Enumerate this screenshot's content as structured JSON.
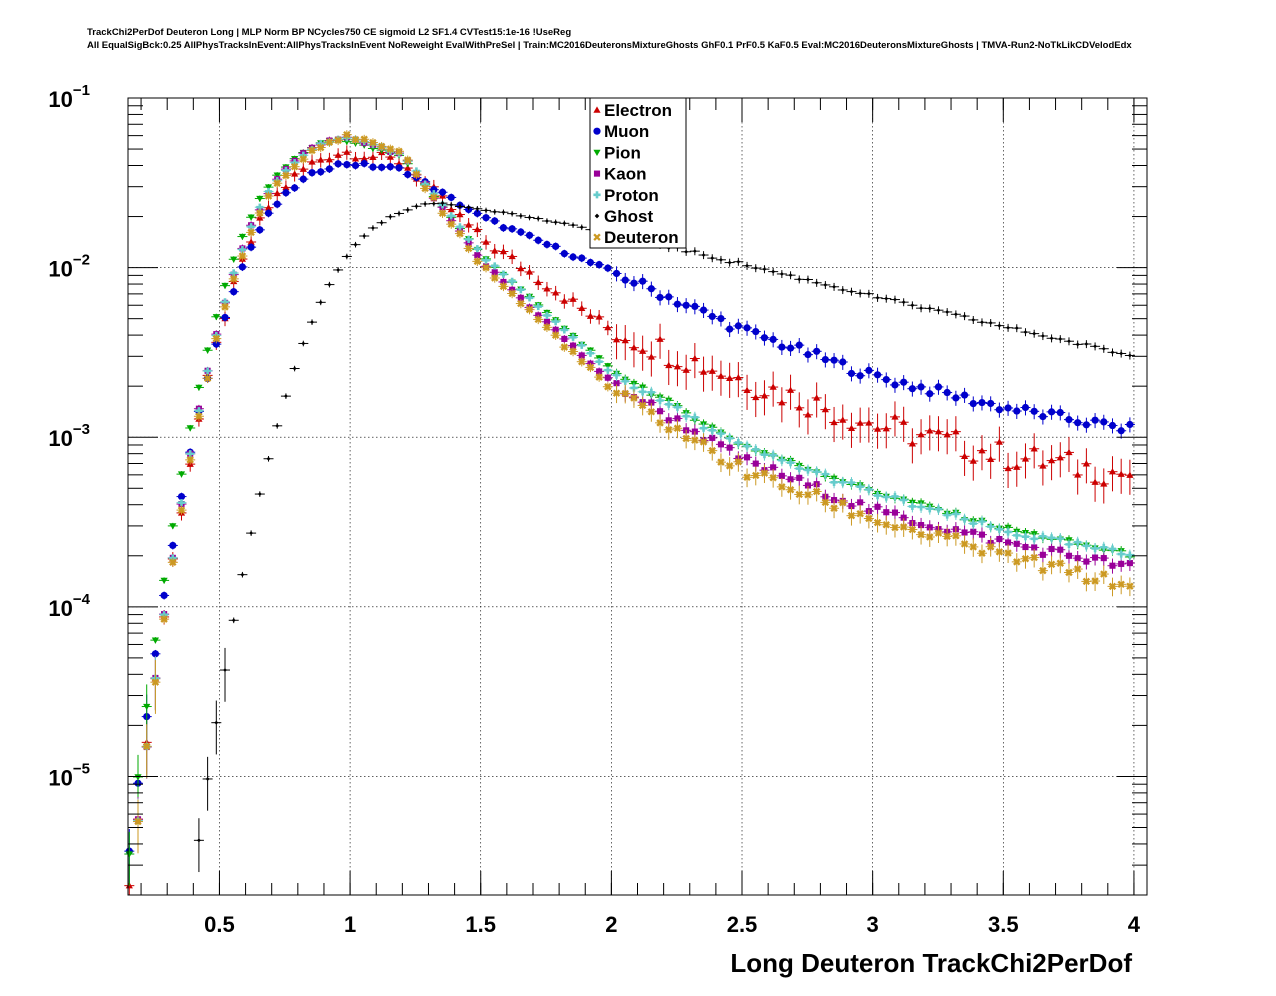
{
  "title_lines": [
    "TrackChi2PerDof Deuteron Long | MLP Norm BP NCycles750 CE sigmoid L2 SF1.4 CVTest15:1e-16 !UseReg",
    "All EqualSigBck:0.25 AllPhysTracksInEvent:AllPhysTracksInEvent NoReweight EvalWithPreSel | Train:MC2016DeuteronsMixtureGhosts GhF0.1 PrF0.5 KaF0.5 Eval:MC2016DeuteronsMixtureGhosts | TMVA-Run2-NoTkLikCDVelodEdx"
  ],
  "chart_data": {
    "type": "scatter",
    "xlabel": "Long Deuteron TrackChi2PerDof",
    "ylabel": "",
    "xlim": [
      0.15,
      4.05
    ],
    "ylim": [
      2e-06,
      0.1
    ],
    "ylog": true,
    "grid": true,
    "legend_position": "top-center",
    "x_ticks": [
      {
        "value": 0.5,
        "label": "0.5"
      },
      {
        "value": 1,
        "label": "1"
      },
      {
        "value": 1.5,
        "label": "1.5"
      },
      {
        "value": 2,
        "label": "2"
      },
      {
        "value": 2.5,
        "label": "2.5"
      },
      {
        "value": 3,
        "label": "3"
      },
      {
        "value": 3.5,
        "label": "3.5"
      },
      {
        "value": 4,
        "label": "4"
      }
    ],
    "y_ticks": [
      {
        "value": 1e-05,
        "mant": "10",
        "exp": "−5"
      },
      {
        "value": 0.0001,
        "mant": "10",
        "exp": "−4"
      },
      {
        "value": 0.001,
        "mant": "10",
        "exp": "−3"
      },
      {
        "value": 0.01,
        "mant": "10",
        "exp": "−2"
      },
      {
        "value": 0.1,
        "mant": "10",
        "exp": "−1"
      }
    ],
    "series": [
      {
        "name": "Electron",
        "color": "#cc0000",
        "marker": "triangle-up",
        "shape": {
          "peak_x": 1.0,
          "peak_y": 0.048,
          "rise": 7.5,
          "fall_x": [
            1.2,
            1.5,
            2.0,
            2.5,
            3.0,
            3.5,
            4.0
          ],
          "fall_y": [
            0.042,
            0.015,
            0.0043,
            0.0022,
            0.0012,
            0.00078,
            0.0006
          ]
        },
        "noise": 0.17
      },
      {
        "name": "Muon",
        "color": "#0000cc",
        "marker": "circle",
        "shape": {
          "peak_x": 1.0,
          "peak_y": 0.041,
          "rise": 7.0,
          "fall_x": [
            1.2,
            1.5,
            2.0,
            2.5,
            3.0,
            3.5,
            4.0
          ],
          "fall_y": [
            0.038,
            0.02,
            0.0095,
            0.0043,
            0.0023,
            0.0015,
            0.0011
          ]
        },
        "noise": 0.06
      },
      {
        "name": "Pion",
        "color": "#00aa00",
        "marker": "triangle-down",
        "shape": {
          "peak_x": 0.97,
          "peak_y": 0.057,
          "rise": 8.0,
          "fall_x": [
            1.2,
            1.5,
            2.0,
            2.5,
            3.0,
            3.5,
            4.0
          ],
          "fall_y": [
            0.045,
            0.012,
            0.0025,
            0.0009,
            0.00048,
            0.00029,
            0.0002
          ]
        },
        "noise": 0.03
      },
      {
        "name": "Kaon",
        "color": "#990099",
        "marker": "square",
        "shape": {
          "peak_x": 0.99,
          "peak_y": 0.058,
          "rise": 8.0,
          "fall_x": [
            1.2,
            1.5,
            2.0,
            2.5,
            3.0,
            3.5,
            4.0
          ],
          "fall_y": [
            0.046,
            0.011,
            0.0021,
            0.00074,
            0.00037,
            0.00024,
            0.00017
          ]
        },
        "noise": 0.06
      },
      {
        "name": "Proton",
        "color": "#66cccc",
        "marker": "plus",
        "shape": {
          "peak_x": 0.99,
          "peak_y": 0.058,
          "rise": 8.0,
          "fall_x": [
            1.2,
            1.5,
            2.0,
            2.5,
            3.0,
            3.5,
            4.0
          ],
          "fall_y": [
            0.047,
            0.012,
            0.0024,
            0.00088,
            0.00047,
            0.00028,
            0.0002
          ]
        },
        "noise": 0.04
      },
      {
        "name": "Ghost",
        "color": "#000000",
        "marker": "diamond",
        "shape": {
          "peak_x": 1.35,
          "peak_y": 0.024,
          "rise": 5.0,
          "fall_x": [
            1.6,
            2.0,
            2.5,
            3.0,
            3.5,
            4.0
          ],
          "fall_y": [
            0.021,
            0.016,
            0.0105,
            0.0068,
            0.0045,
            0.003
          ]
        },
        "noise": 0.02
      },
      {
        "name": "Deuteron",
        "color": "#cc9922",
        "marker": "cross",
        "shape": {
          "peak_x": 1.01,
          "peak_y": 0.059,
          "rise": 7.5,
          "fall_x": [
            1.2,
            1.5,
            2.0,
            2.5,
            3.0,
            3.5,
            4.0
          ],
          "fall_y": [
            0.046,
            0.0105,
            0.0019,
            0.00064,
            0.00033,
            0.0002,
            0.00013
          ]
        },
        "noise": 0.08
      }
    ],
    "x_start": 0.155,
    "x_step": 0.0333
  }
}
